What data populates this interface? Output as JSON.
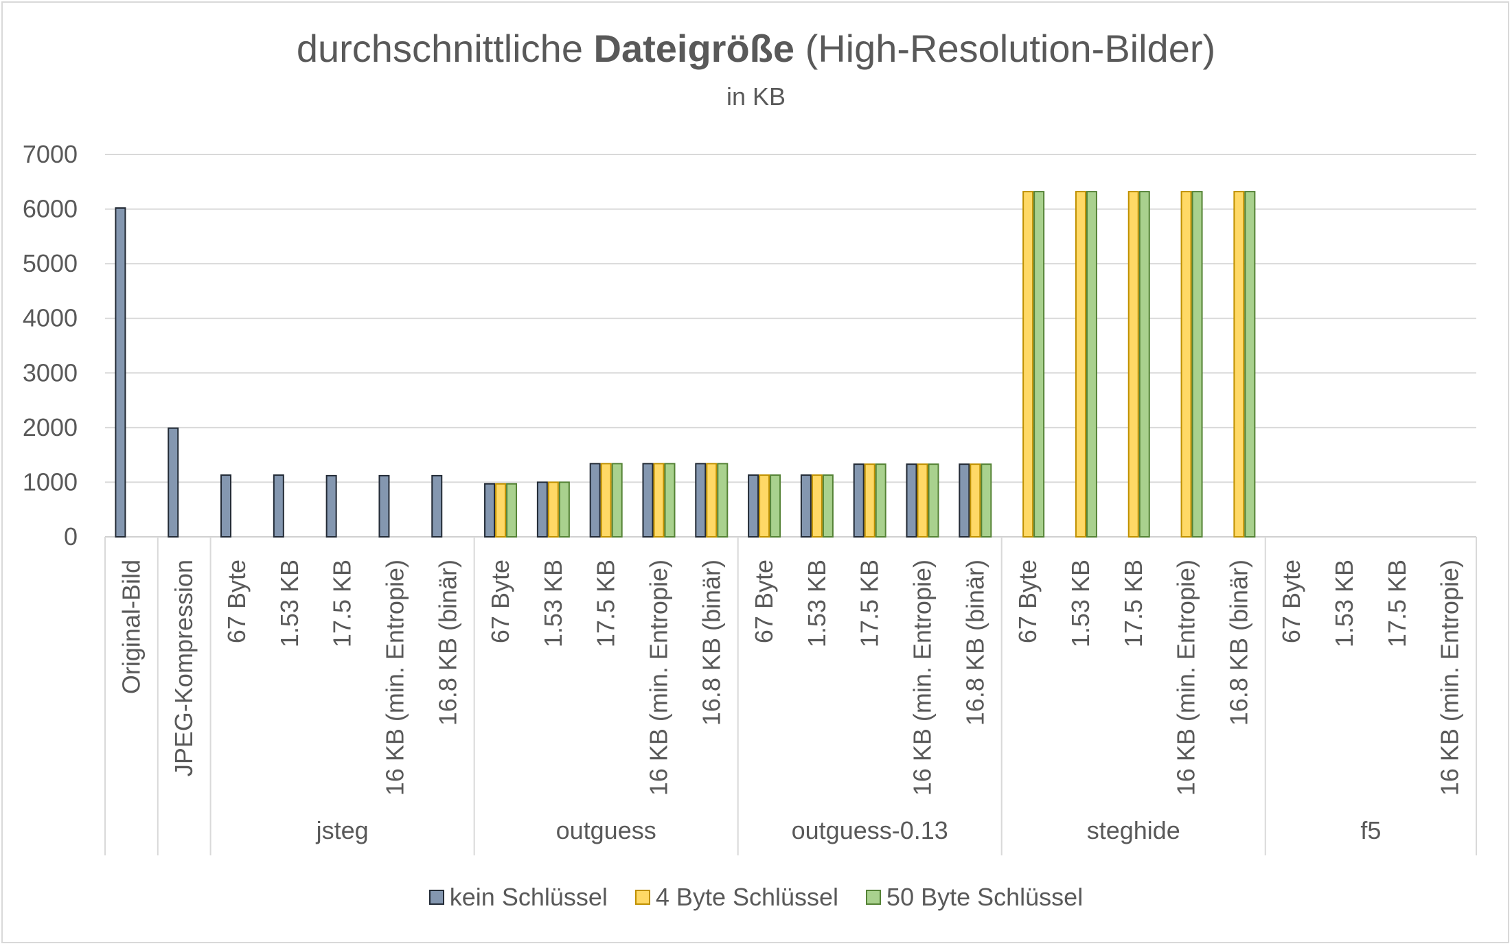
{
  "chart_data": {
    "type": "bar",
    "title_prefix": "durchschnittliche ",
    "title_bold": "Dateigröße",
    "title_suffix": " (High-Resolution-Bilder)",
    "subtitle": "in KB",
    "ylim": [
      0,
      7000
    ],
    "yticks": [
      "0",
      "1000",
      "2000",
      "3000",
      "4000",
      "5000",
      "6000",
      "7000"
    ],
    "grid": true,
    "legend_position": "bottom",
    "series": [
      {
        "name": "kein Schlüssel",
        "color": "#8497b0",
        "edge": "#222a35"
      },
      {
        "name": "4 Byte Schlüssel",
        "color": "#ffd966",
        "edge": "#bf9000"
      },
      {
        "name": "50 Byte Schlüssel",
        "color": "#a9d18e",
        "edge": "#548235"
      }
    ],
    "groups": [
      {
        "label": "",
        "categories": [
          {
            "label": "Original-Bild",
            "values": [
              6020,
              null,
              null
            ]
          }
        ]
      },
      {
        "label": "",
        "categories": [
          {
            "label": "JPEG-Kompression",
            "values": [
              1990,
              null,
              null
            ]
          }
        ]
      },
      {
        "label": "jsteg",
        "categories": [
          {
            "label": "67 Byte",
            "values": [
              1130,
              null,
              null
            ]
          },
          {
            "label": "1.53 KB",
            "values": [
              1130,
              null,
              null
            ]
          },
          {
            "label": "17.5 KB",
            "values": [
              1120,
              null,
              null
            ]
          },
          {
            "label": "16 KB (min. Entropie)",
            "values": [
              1120,
              null,
              null
            ]
          },
          {
            "label": "16.8 KB (binär)",
            "values": [
              1120,
              null,
              null
            ]
          }
        ]
      },
      {
        "label": "outguess",
        "categories": [
          {
            "label": "67 Byte",
            "values": [
              970,
              970,
              970
            ]
          },
          {
            "label": "1.53 KB",
            "values": [
              1000,
              1000,
              1000
            ]
          },
          {
            "label": "17.5 KB",
            "values": [
              1340,
              1340,
              1340
            ]
          },
          {
            "label": "16 KB (min. Entropie)",
            "values": [
              1340,
              1340,
              1340
            ]
          },
          {
            "label": "16.8 KB (binär)",
            "values": [
              1340,
              1340,
              1340
            ]
          }
        ]
      },
      {
        "label": "outguess-0.13",
        "categories": [
          {
            "label": "67 Byte",
            "values": [
              1130,
              1130,
              1130
            ]
          },
          {
            "label": "1.53 KB",
            "values": [
              1130,
              1130,
              1130
            ]
          },
          {
            "label": "17.5 KB",
            "values": [
              1330,
              1330,
              1330
            ]
          },
          {
            "label": "16 KB (min. Entropie)",
            "values": [
              1330,
              1330,
              1330
            ]
          },
          {
            "label": "16.8 KB (binär)",
            "values": [
              1330,
              1330,
              1330
            ]
          }
        ]
      },
      {
        "label": "steghide",
        "categories": [
          {
            "label": "67 Byte",
            "values": [
              null,
              6320,
              6320
            ]
          },
          {
            "label": "1.53 KB",
            "values": [
              null,
              6320,
              6320
            ]
          },
          {
            "label": "17.5 KB",
            "values": [
              null,
              6320,
              6320
            ]
          },
          {
            "label": "16 KB (min. Entropie)",
            "values": [
              null,
              6320,
              6320
            ]
          },
          {
            "label": "16.8 KB (binär)",
            "values": [
              null,
              6320,
              6320
            ]
          }
        ]
      },
      {
        "label": "f5",
        "categories": [
          {
            "label": "67 Byte",
            "values": [
              null,
              null,
              null
            ]
          },
          {
            "label": "1.53 KB",
            "values": [
              null,
              null,
              null
            ]
          },
          {
            "label": "17.5 KB",
            "values": [
              null,
              null,
              null
            ]
          },
          {
            "label": "16 KB (min. Entropie)",
            "values": [
              null,
              null,
              null
            ]
          }
        ]
      }
    ]
  }
}
